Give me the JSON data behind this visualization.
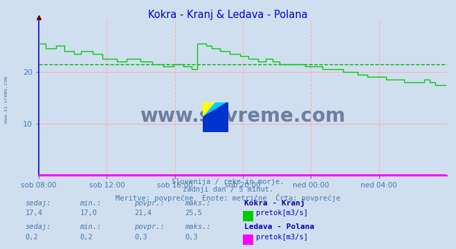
{
  "title": "Kokra - Kranj & Ledava - Polana",
  "title_color": "#0000cc",
  "bg_color": "#d0dff0",
  "plot_bg_color": "#d0dff0",
  "watermark_text": "www.si-vreme.com",
  "watermark_color": "#1a3060",
  "subtitle_lines": [
    "Slovenija / reke in morje.",
    "zadnji dan / 5 minut.",
    "Meritve: povprečne  Enote: metrične  Črta: povprečje"
  ],
  "subtitle_color": "#4477aa",
  "xlabel_ticks": [
    "sob 08:00",
    "sob 12:00",
    "sob 16:00",
    "sob 20:00",
    "ned 00:00",
    "ned 04:00"
  ],
  "xlabel_color": "#4477aa",
  "ylim": [
    0,
    30
  ],
  "xlim": [
    0,
    288
  ],
  "avg_line_value": 21.4,
  "avg_line_color": "#00aa00",
  "kokra_color": "#00cc00",
  "ledava_color": "#ff00ff",
  "tick_color": "#4477aa",
  "table_header_color": "#4477aa",
  "table_label_color": "#0000bb",
  "table_value_color": "#4477aa",
  "kokra_sedaj": "17,4",
  "kokra_min": "17,0",
  "kokra_povpr": "21,4",
  "kokra_maks": "25,5",
  "ledava_sedaj": "0,2",
  "ledava_min": "0,2",
  "ledava_povpr": "0,3",
  "ledava_maks": "0,3",
  "station1": "Kokra - Kranj",
  "station2": "Ledava - Polana",
  "unit": "pretok[m3/s]"
}
